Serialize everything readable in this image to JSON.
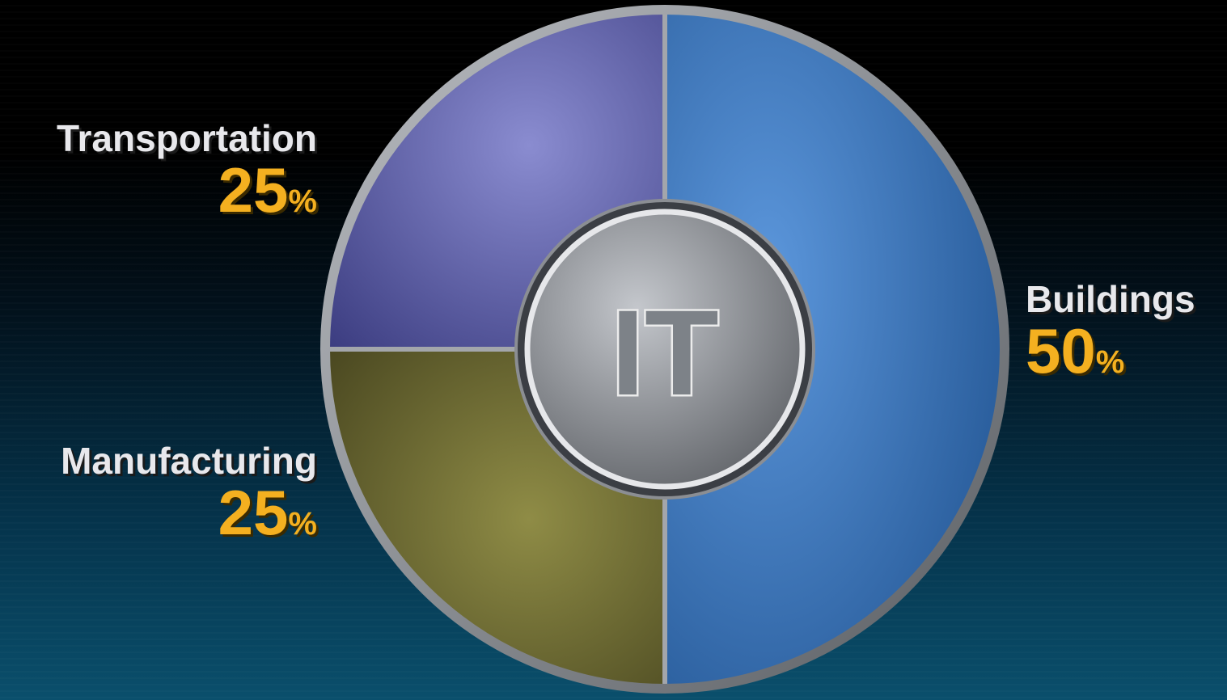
{
  "chart_data": {
    "type": "pie",
    "center_label": "IT",
    "slices": [
      {
        "label": "Transportation",
        "value": 25,
        "unit": "%",
        "color": "#4d4f9c"
      },
      {
        "label": "Buildings",
        "value": 50,
        "unit": "%",
        "color": "#2f6ab8"
      },
      {
        "label": "Manufacturing",
        "value": 25,
        "unit": "%",
        "color": "#6e6c34"
      }
    ],
    "label_color": "#e8e8ec",
    "value_color": "#f4b020"
  }
}
